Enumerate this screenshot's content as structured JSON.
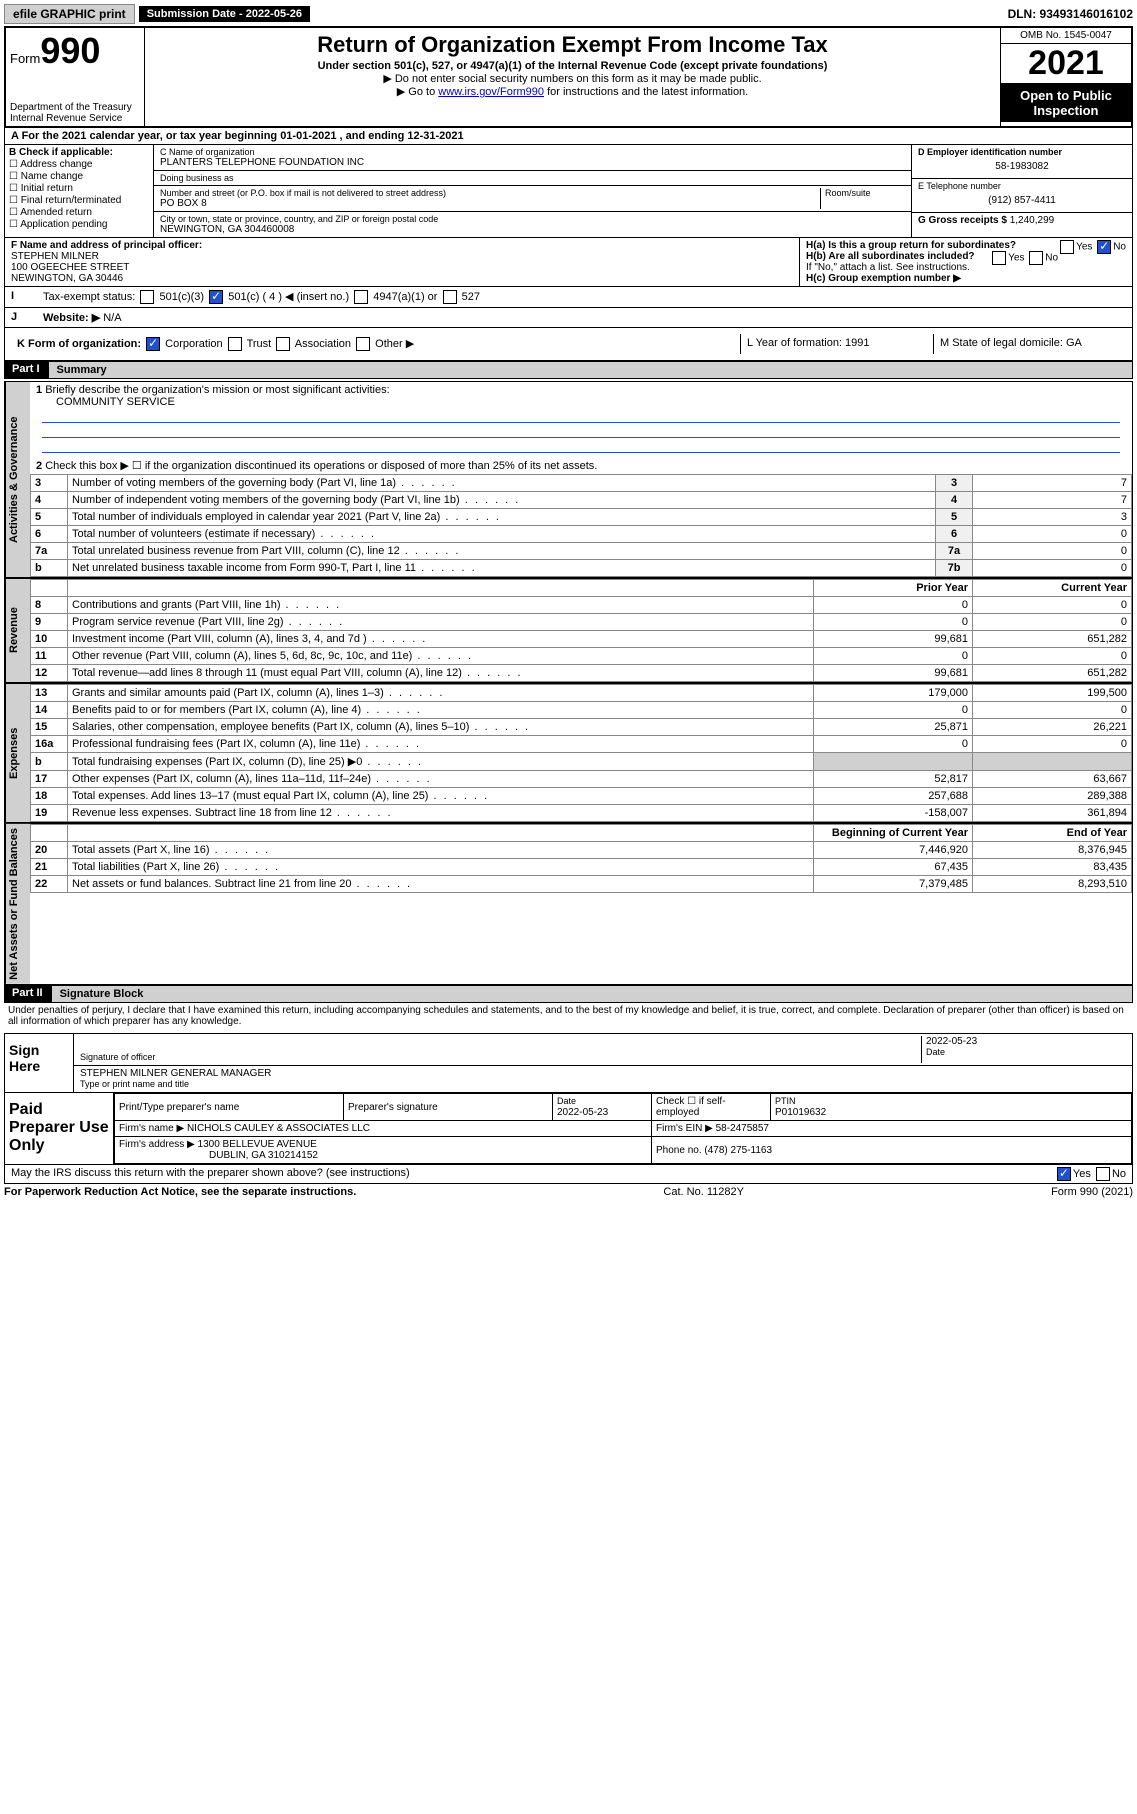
{
  "topbar": {
    "efile": "efile GRAPHIC print",
    "submission_label": "Submission Date - 2022-05-26",
    "dln": "DLN: 93493146016102"
  },
  "header": {
    "form_word": "Form",
    "form_num": "990",
    "dept": "Department of the Treasury",
    "irs": "Internal Revenue Service",
    "title": "Return of Organization Exempt From Income Tax",
    "subtitle": "Under section 501(c), 527, or 4947(a)(1) of the Internal Revenue Code (except private foundations)",
    "note1": "▶ Do not enter social security numbers on this form as it may be made public.",
    "note2_pre": "▶ Go to ",
    "note2_link": "www.irs.gov/Form990",
    "note2_post": " for instructions and the latest information.",
    "omb": "OMB No. 1545-0047",
    "year": "2021",
    "open": "Open to Public Inspection"
  },
  "rowA": "A For the 2021 calendar year, or tax year beginning 01-01-2021   , and ending 12-31-2021",
  "colB": {
    "label": "B Check if applicable:",
    "opts": [
      "Address change",
      "Name change",
      "Initial return",
      "Final return/terminated",
      "Amended return",
      "Application pending"
    ]
  },
  "colC": {
    "name_label": "C Name of organization",
    "name": "PLANTERS TELEPHONE FOUNDATION INC",
    "dba_label": "Doing business as",
    "dba": "",
    "street_label": "Number and street (or P.O. box if mail is not delivered to street address)",
    "room_label": "Room/suite",
    "street": "PO BOX 8",
    "city_label": "City or town, state or province, country, and ZIP or foreign postal code",
    "city": "NEWINGTON, GA  304460008"
  },
  "colD": {
    "ein_label": "D Employer identification number",
    "ein": "58-1983082",
    "phone_label": "E Telephone number",
    "phone": "(912) 857-4411",
    "gross_label": "G Gross receipts $",
    "gross": "1,240,299"
  },
  "rowF": {
    "label": "F  Name and address of principal officer:",
    "name": "STEPHEN MILNER",
    "addr1": "100 OGEECHEE STREET",
    "addr2": "NEWINGTON, GA  30446"
  },
  "rowH": {
    "ha": "H(a)  Is this a group return for subordinates?",
    "hb": "H(b)  Are all subordinates included?",
    "hnote": "If \"No,\" attach a list. See instructions.",
    "hc": "H(c)  Group exemption number ▶",
    "yes": "Yes",
    "no": "No"
  },
  "rowI": {
    "label": "Tax-exempt status:",
    "opt1": "501(c)(3)",
    "opt2": "501(c) ( 4 ) ◀ (insert no.)",
    "opt3": "4947(a)(1) or",
    "opt4": "527"
  },
  "rowJ": {
    "label": "Website: ▶",
    "val": "N/A"
  },
  "rowK": {
    "label": "K Form of organization:",
    "corp": "Corporation",
    "trust": "Trust",
    "assoc": "Association",
    "other": "Other ▶",
    "L": "L Year of formation: 1991",
    "M": "M State of legal domicile: GA"
  },
  "part1": {
    "header": "Part I",
    "title": "Summary",
    "line1": "Briefly describe the organization's mission or most significant activities:",
    "mission": "COMMUNITY SERVICE",
    "line2": "Check this box ▶ ☐  if the organization discontinued its operations or disposed of more than 25% of its net assets.",
    "tabs": {
      "gov": "Activities & Governance",
      "rev": "Revenue",
      "exp": "Expenses",
      "net": "Net Assets or Fund Balances"
    },
    "rows_gov": [
      {
        "n": "3",
        "t": "Number of voting members of the governing body (Part VI, line 1a)",
        "b": "3",
        "v": "7"
      },
      {
        "n": "4",
        "t": "Number of independent voting members of the governing body (Part VI, line 1b)",
        "b": "4",
        "v": "7"
      },
      {
        "n": "5",
        "t": "Total number of individuals employed in calendar year 2021 (Part V, line 2a)",
        "b": "5",
        "v": "3"
      },
      {
        "n": "6",
        "t": "Total number of volunteers (estimate if necessary)",
        "b": "6",
        "v": "0"
      },
      {
        "n": "7a",
        "t": "Total unrelated business revenue from Part VIII, column (C), line 12",
        "b": "7a",
        "v": "0"
      },
      {
        "n": "b",
        "t": "Net unrelated business taxable income from Form 990-T, Part I, line 11",
        "b": "7b",
        "v": "0"
      }
    ],
    "col_headers": {
      "prior": "Prior Year",
      "current": "Current Year"
    },
    "rows_rev": [
      {
        "n": "8",
        "t": "Contributions and grants (Part VIII, line 1h)",
        "p": "0",
        "c": "0"
      },
      {
        "n": "9",
        "t": "Program service revenue (Part VIII, line 2g)",
        "p": "0",
        "c": "0"
      },
      {
        "n": "10",
        "t": "Investment income (Part VIII, column (A), lines 3, 4, and 7d )",
        "p": "99,681",
        "c": "651,282"
      },
      {
        "n": "11",
        "t": "Other revenue (Part VIII, column (A), lines 5, 6d, 8c, 9c, 10c, and 11e)",
        "p": "0",
        "c": "0"
      },
      {
        "n": "12",
        "t": "Total revenue—add lines 8 through 11 (must equal Part VIII, column (A), line 12)",
        "p": "99,681",
        "c": "651,282"
      }
    ],
    "rows_exp": [
      {
        "n": "13",
        "t": "Grants and similar amounts paid (Part IX, column (A), lines 1–3)",
        "p": "179,000",
        "c": "199,500"
      },
      {
        "n": "14",
        "t": "Benefits paid to or for members (Part IX, column (A), line 4)",
        "p": "0",
        "c": "0"
      },
      {
        "n": "15",
        "t": "Salaries, other compensation, employee benefits (Part IX, column (A), lines 5–10)",
        "p": "25,871",
        "c": "26,221"
      },
      {
        "n": "16a",
        "t": "Professional fundraising fees (Part IX, column (A), line 11e)",
        "p": "0",
        "c": "0"
      },
      {
        "n": "b",
        "t": "Total fundraising expenses (Part IX, column (D), line 25) ▶0",
        "p": "",
        "c": ""
      },
      {
        "n": "17",
        "t": "Other expenses (Part IX, column (A), lines 11a–11d, 11f–24e)",
        "p": "52,817",
        "c": "63,667"
      },
      {
        "n": "18",
        "t": "Total expenses. Add lines 13–17 (must equal Part IX, column (A), line 25)",
        "p": "257,688",
        "c": "289,388"
      },
      {
        "n": "19",
        "t": "Revenue less expenses. Subtract line 18 from line 12",
        "p": "-158,007",
        "c": "361,894"
      }
    ],
    "net_headers": {
      "begin": "Beginning of Current Year",
      "end": "End of Year"
    },
    "rows_net": [
      {
        "n": "20",
        "t": "Total assets (Part X, line 16)",
        "p": "7,446,920",
        "c": "8,376,945"
      },
      {
        "n": "21",
        "t": "Total liabilities (Part X, line 26)",
        "p": "67,435",
        "c": "83,435"
      },
      {
        "n": "22",
        "t": "Net assets or fund balances. Subtract line 21 from line 20",
        "p": "7,379,485",
        "c": "8,293,510"
      }
    ]
  },
  "part2": {
    "header": "Part II",
    "title": "Signature Block",
    "penalty": "Under penalties of perjury, I declare that I have examined this return, including accompanying schedules and statements, and to the best of my knowledge and belief, it is true, correct, and complete. Declaration of preparer (other than officer) is based on all information of which preparer has any knowledge.",
    "sign_here": "Sign Here",
    "sig_officer": "Signature of officer",
    "sig_date": "2022-05-23",
    "date_label": "Date",
    "officer_name": "STEPHEN MILNER  GENERAL MANAGER",
    "officer_label": "Type or print name and title",
    "paid": "Paid Preparer Use Only",
    "prep_name_label": "Print/Type preparer's name",
    "prep_sig_label": "Preparer's signature",
    "prep_date": "2022-05-23",
    "self_emp": "Check ☐ if self-employed",
    "ptin_label": "PTIN",
    "ptin": "P01019632",
    "firm_name_label": "Firm's name    ▶",
    "firm_name": "NICHOLS CAULEY & ASSOCIATES LLC",
    "firm_ein_label": "Firm's EIN ▶",
    "firm_ein": "58-2475857",
    "firm_addr_label": "Firm's address ▶",
    "firm_addr1": "1300 BELLEVUE AVENUE",
    "firm_addr2": "DUBLIN, GA  310214152",
    "firm_phone_label": "Phone no.",
    "firm_phone": "(478) 275-1163",
    "discuss": "May the IRS discuss this return with the preparer shown above? (see instructions)",
    "paperwork": "For Paperwork Reduction Act Notice, see the separate instructions.",
    "cat": "Cat. No. 11282Y",
    "formfoot": "Form 990 (2021)"
  }
}
